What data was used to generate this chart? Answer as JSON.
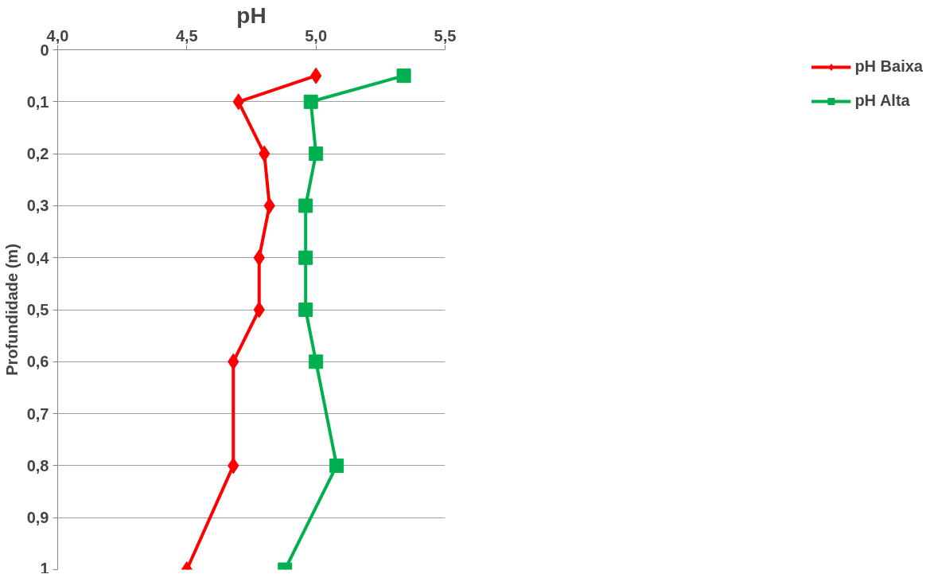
{
  "chart_data": {
    "type": "line",
    "xlabel": "pH",
    "ylabel": "Profundidade (m)",
    "xlim": [
      4.0,
      5.5
    ],
    "xticks": [
      {
        "value": 4.0,
        "label": "4,0"
      },
      {
        "value": 4.5,
        "label": "4,5"
      },
      {
        "value": 5.0,
        "label": "5,0"
      },
      {
        "value": 5.5,
        "label": "5,5"
      }
    ],
    "ylim": [
      1,
      0
    ],
    "yticks": [
      0,
      {
        "value": 0.1,
        "label": "0,1"
      },
      {
        "value": 0.2,
        "label": "0,2"
      },
      {
        "value": 0.3,
        "label": "0,3"
      },
      {
        "value": 0.4,
        "label": "0,4"
      },
      {
        "value": 0.5,
        "label": "0,5"
      },
      {
        "value": 0.6,
        "label": "0,6"
      },
      {
        "value": 0.7,
        "label": "0,7"
      },
      {
        "value": 0.8,
        "label": "0,8"
      },
      {
        "value": 0.9,
        "label": "0,9"
      },
      1
    ],
    "grid": "y",
    "legend": "right",
    "line_style": "solid",
    "series": [
      {
        "name": "pH Baixa",
        "color": "#ff0000",
        "marker": "diamond",
        "x": [
          5.0,
          4.7,
          4.8,
          4.82,
          4.78,
          4.78,
          4.68,
          4.68,
          4.5
        ],
        "values": [
          0.05,
          0.1,
          0.2,
          0.3,
          0.4,
          0.5,
          0.6,
          0.8,
          1.0
        ]
      },
      {
        "name": "pH Alta",
        "color": "#00b050",
        "marker": "square",
        "x": [
          5.34,
          4.98,
          5.0,
          4.96,
          4.96,
          4.96,
          5.0,
          5.08,
          4.88
        ],
        "values": [
          0.05,
          0.1,
          0.2,
          0.3,
          0.4,
          0.5,
          0.6,
          0.8,
          1.0
        ]
      }
    ]
  }
}
